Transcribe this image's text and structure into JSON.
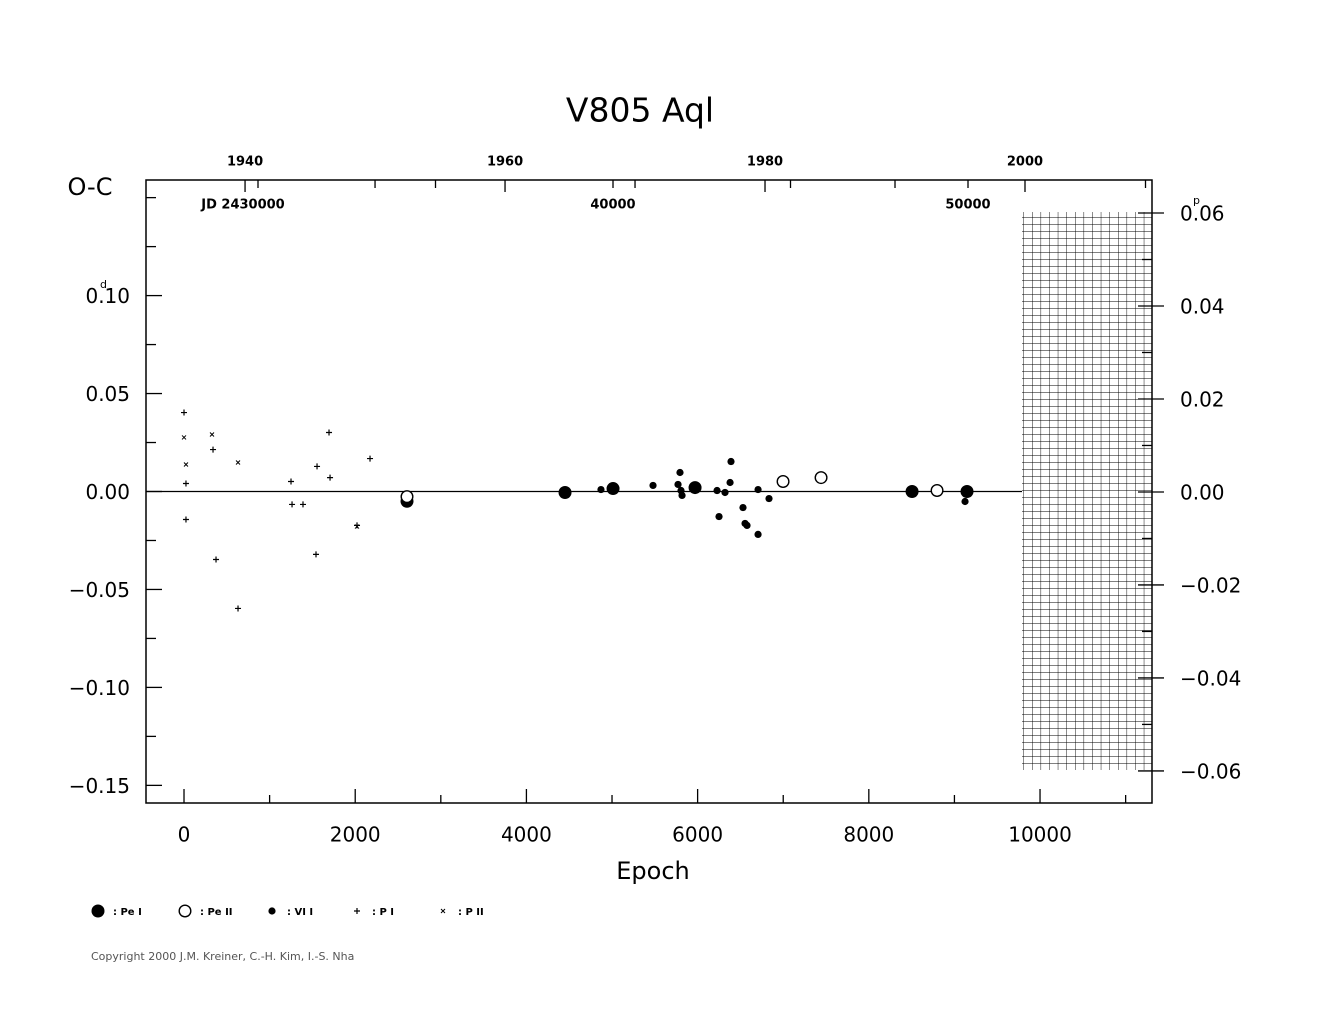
{
  "chart_data": {
    "type": "scatter",
    "title": "V805  Aql",
    "y_label": "O-C",
    "x_label": "Epoch",
    "y_unit": "d",
    "y2_unit": "p",
    "copyright": "Copyright 2000 J.M. Kreiner, C.-H. Kim, I.-S. Nha",
    "xlim": [
      -444,
      11308
    ],
    "xticks": [
      0,
      2000,
      4000,
      6000,
      8000,
      10000
    ],
    "xticks_minor": [
      1000,
      3000,
      5000,
      7000,
      9000,
      11000
    ],
    "ylim": [
      -0.159,
      0.159
    ],
    "yticks": [
      {
        "value": 0.1,
        "label": "0.10"
      },
      {
        "value": 0.05,
        "label": "0.05"
      },
      {
        "value": 0,
        "label": "0.00"
      },
      {
        "value": -0.05,
        "label": "−0.05"
      },
      {
        "value": -0.1,
        "label": "−0.10"
      },
      {
        "value": -0.15,
        "label": "−0.15"
      }
    ],
    "yticks_minor": [
      0.15,
      0.125,
      0.075,
      0.025,
      -0.025,
      -0.075,
      -0.125
    ],
    "y2lim": [
      -0.0669,
      0.0671
    ],
    "y2ticks": [
      {
        "value": 0.06,
        "label": "0.06"
      },
      {
        "value": 0.04,
        "label": "0.04"
      },
      {
        "value": 0.02,
        "label": "0.02"
      },
      {
        "value": 0,
        "label": "0.00"
      },
      {
        "value": -0.02,
        "label": "−0.02"
      },
      {
        "value": -0.04,
        "label": "−0.04"
      },
      {
        "value": -0.06,
        "label": "−0.06"
      }
    ],
    "y2ticks_minor": [
      0.05,
      0.03,
      0.01,
      -0.01,
      -0.03,
      -0.05
    ],
    "year_lim": [
      1932.38,
      2009.77
    ],
    "year_ticks": [
      1940,
      1960,
      1980,
      2000
    ],
    "year_ticks_minor": [
      1950,
      1970,
      1990
    ],
    "jd_lim": [
      26845,
      55183
    ],
    "jd_ticks": [
      {
        "value": 30000,
        "label": "JD 2430000"
      },
      {
        "value": 40000,
        "label": "40000"
      },
      {
        "value": 50000,
        "label": "50000"
      }
    ],
    "jd_ticks_minor": [
      35000,
      45000,
      55000
    ],
    "zero_line": true,
    "series": [
      {
        "name": ": Pe I",
        "marker": "big-dot",
        "color": "#000000",
        "x": [
          2605,
          4451,
          5012,
          5970,
          8505,
          9147
        ],
        "values": [
          -0.005,
          -0.0005,
          0.0015,
          0.002,
          0,
          0
        ]
      },
      {
        "name": ": Pe II",
        "marker": "big-ring",
        "color": "#000000",
        "x": [
          2605,
          6998,
          7442,
          8797
        ],
        "values": [
          -0.0026,
          0.0051,
          0.0071,
          0.0005
        ]
      },
      {
        "name": ": VI I",
        "marker": "dot",
        "color": "#000000",
        "x": [
          4871,
          5479,
          5771,
          5794,
          5806,
          5818,
          6227,
          6250,
          6320,
          6379,
          6390,
          6530,
          6554,
          6577,
          6706,
          6706,
          6834,
          9124
        ],
        "values": [
          0.001,
          0.0031,
          0.0036,
          0.0097,
          0.0005,
          -0.002,
          0.0005,
          -0.0128,
          -0.0005,
          0.0046,
          0.0153,
          -0.0082,
          -0.0163,
          -0.0173,
          0.001,
          -0.0219,
          -0.0036,
          -0.0051
        ]
      },
      {
        "name": ": P I",
        "marker": "plus",
        "color": "#000000",
        "x": [
          0,
          23,
          23,
          339,
          374,
          631,
          1250,
          1262,
          1390,
          1542,
          1554,
          1694,
          1706,
          2021,
          2173
        ],
        "values": [
          0.0403,
          0.0041,
          -0.0143,
          0.0214,
          -0.0347,
          -0.0597,
          0.0051,
          -0.0066,
          -0.0066,
          -0.0321,
          0.0128,
          0.0301,
          0.0071,
          -0.0173,
          0.0168
        ]
      },
      {
        "name": ": P II",
        "marker": "cross",
        "color": "#000000",
        "x": [
          0,
          23,
          327,
          631,
          2021
        ],
        "values": [
          0.0276,
          0.0138,
          0.0291,
          0.0148,
          -0.0179
        ]
      }
    ]
  }
}
